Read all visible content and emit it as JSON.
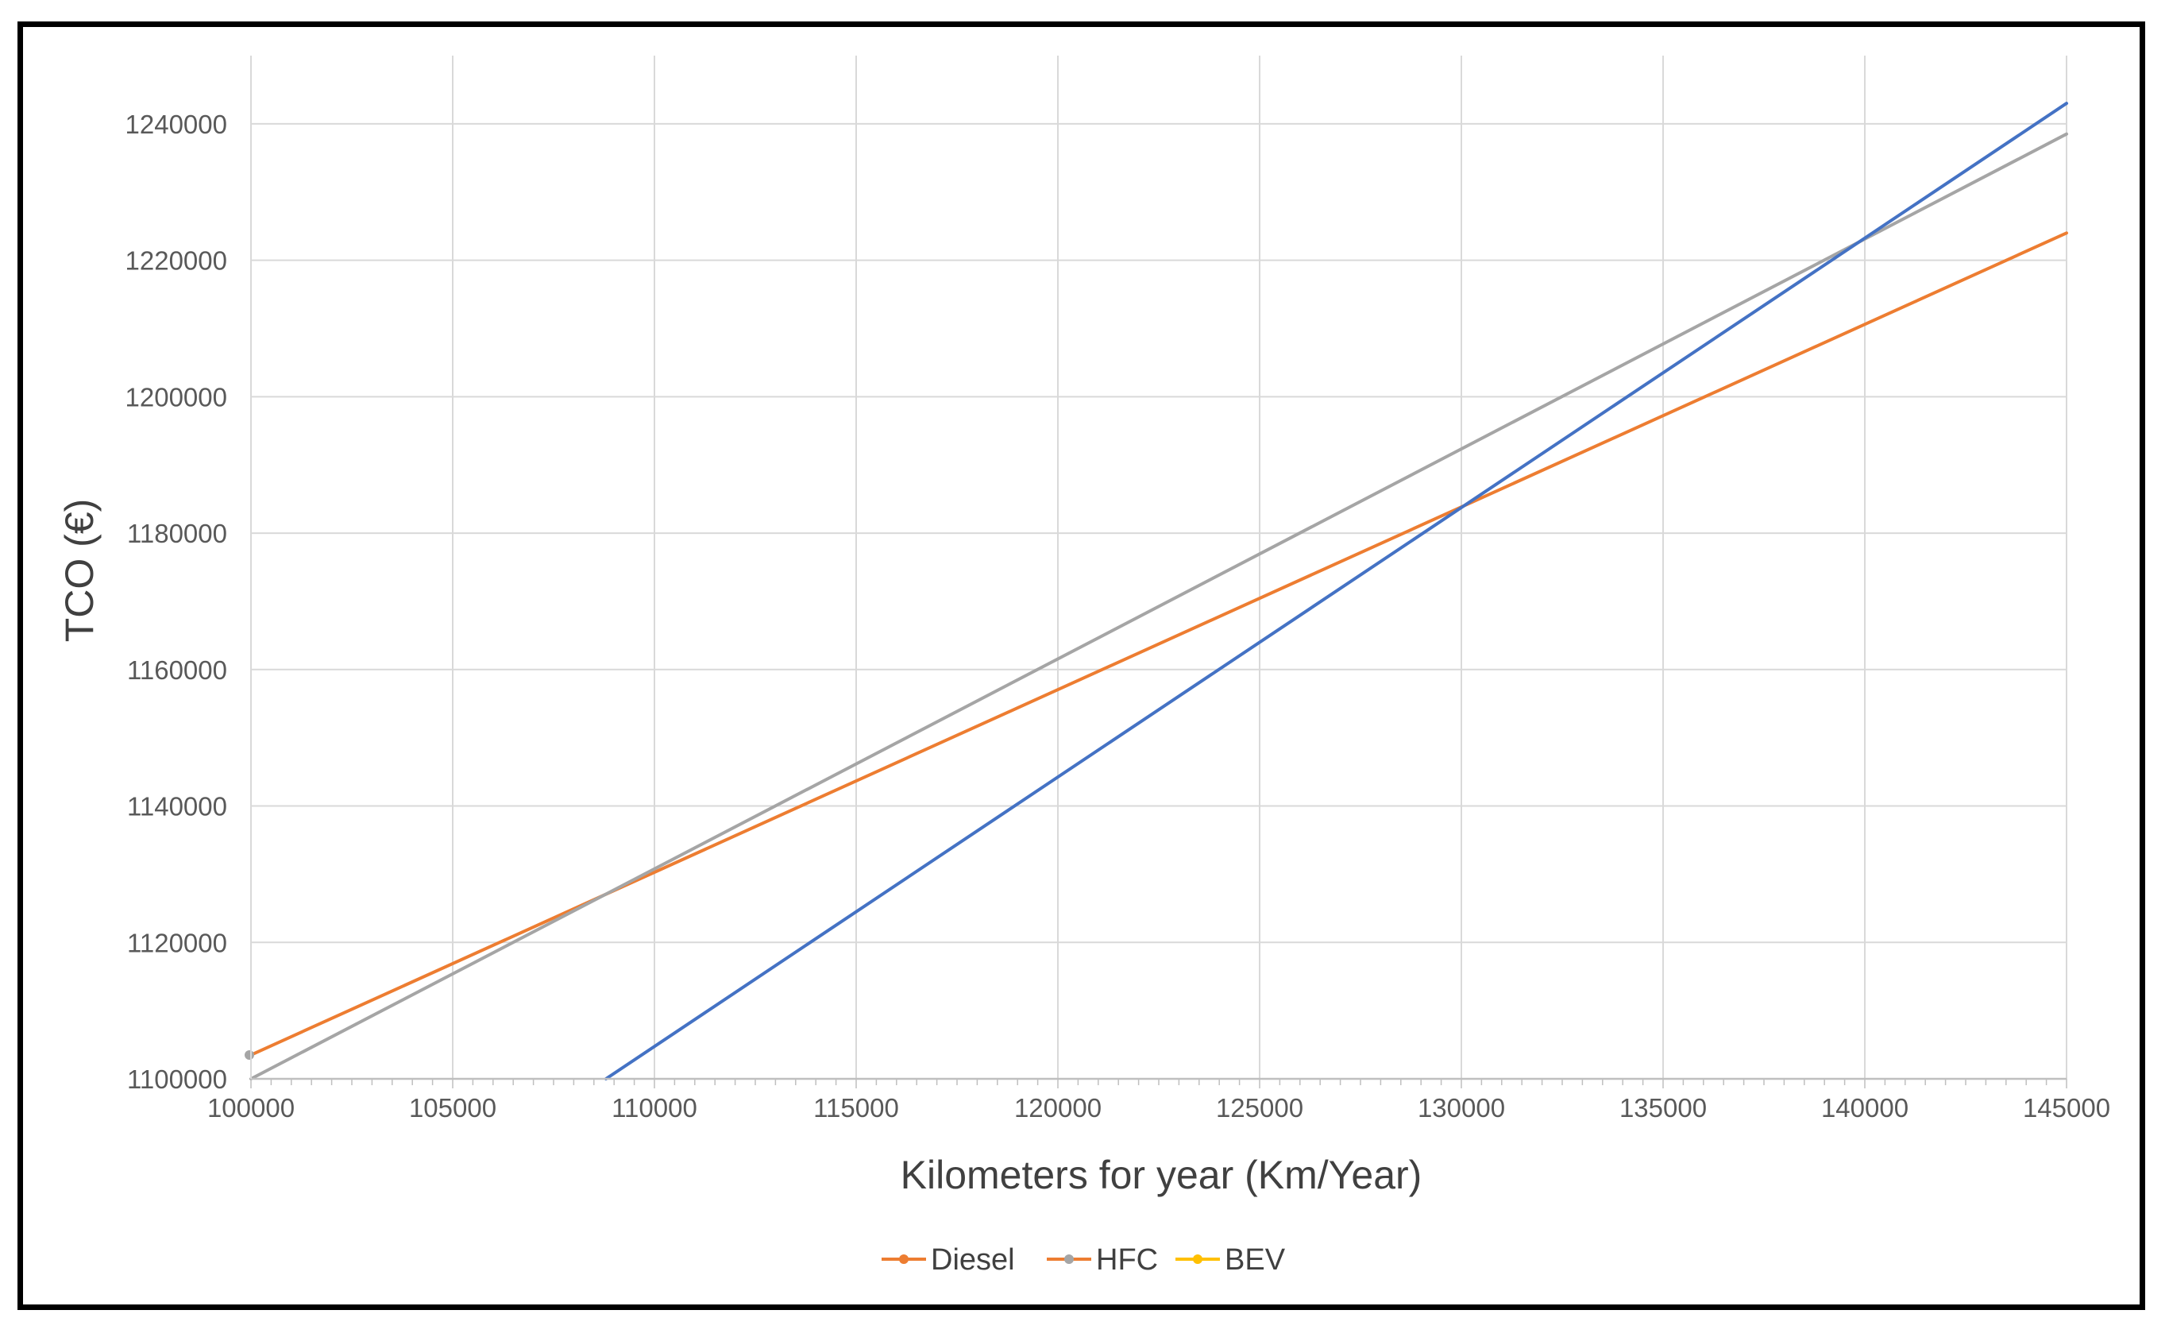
{
  "chart_data": {
    "type": "line",
    "title": "",
    "xlabel": "Kilometers for year (Km/Year)",
    "ylabel": "TCO (€)",
    "xlim": [
      100000,
      145000
    ],
    "ylim": [
      1100000,
      1250000
    ],
    "x_ticks": [
      100000,
      105000,
      110000,
      115000,
      120000,
      125000,
      130000,
      135000,
      140000,
      145000
    ],
    "x_tick_labels": [
      "100000",
      "105000",
      "110000",
      "115000",
      "120000",
      "125000",
      "130000",
      "135000",
      "140000",
      "145000"
    ],
    "y_ticks": [
      1100000,
      1120000,
      1140000,
      1160000,
      1180000,
      1200000,
      1220000,
      1240000
    ],
    "y_tick_labels": [
      "1100000",
      "1120000",
      "1140000",
      "1160000",
      "1180000",
      "1200000",
      "1220000",
      "1240000"
    ],
    "grid": true,
    "legend_position": "bottom",
    "series": [
      {
        "name": "Diesel",
        "color": "#ED7D31",
        "x": [
          100000,
          145000
        ],
        "y": [
          1103500,
          1224000
        ]
      },
      {
        "name": "HFC",
        "color": "#A5A5A5",
        "x": [
          100000,
          145000
        ],
        "y": [
          1100000,
          1238500
        ]
      },
      {
        "name": "BEV",
        "color": "#4472C4",
        "x": [
          108800,
          145000
        ],
        "y": [
          1100000,
          1243000
        ]
      }
    ],
    "legend": [
      {
        "label": "Diesel",
        "line_color": "#ED7D31",
        "marker_color": "#ED7D31"
      },
      {
        "label": "HFC",
        "line_color": "#ED7D31",
        "marker_color": "#A5A5A5"
      },
      {
        "label": "BEV",
        "line_color": "#FFC000",
        "marker_color": "#FFC000"
      }
    ],
    "colors": {
      "grid": "#D9D9D9",
      "axis": "#BFBFBF",
      "text": "#595959"
    }
  }
}
